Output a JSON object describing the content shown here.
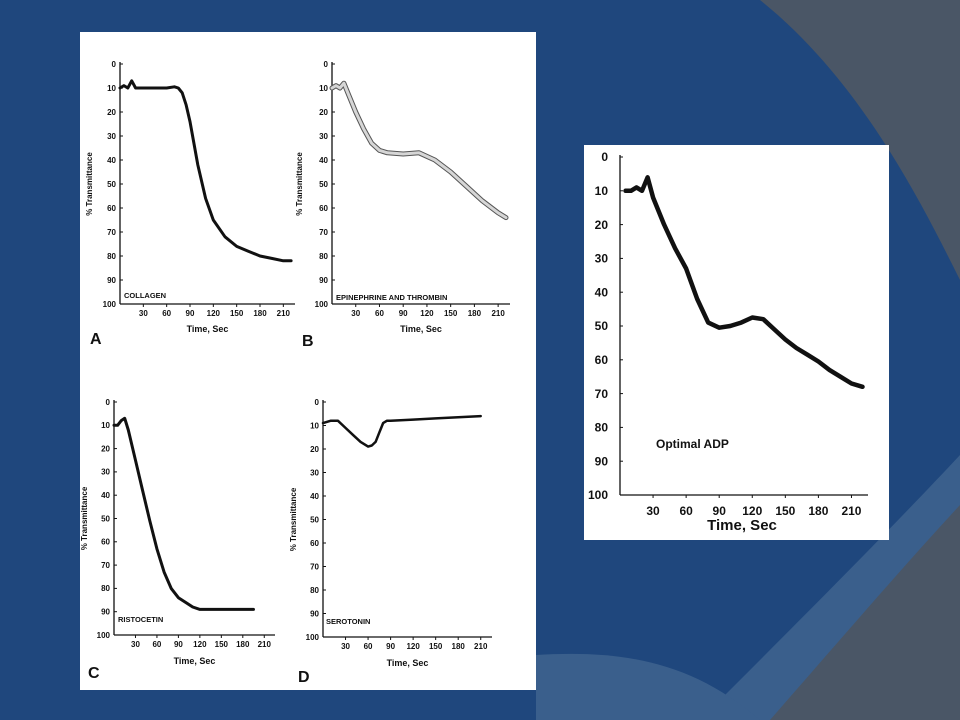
{
  "slide": {
    "colors": {
      "background": "#1f477d",
      "band_light": "#3a5f8c",
      "band_grey": "#4a5666",
      "panel": "#ffffff",
      "ink": "#111111"
    }
  },
  "chart_data": [
    {
      "id": "A",
      "type": "line",
      "panel_letter": "A",
      "annotation": "COLLAGEN",
      "xlabel": "Time, Sec",
      "ylabel": "% Transmittance",
      "xticks": [
        30,
        60,
        90,
        120,
        150,
        180,
        210
      ],
      "yticks": [
        0,
        10,
        20,
        30,
        40,
        50,
        60,
        70,
        80,
        90,
        100
      ],
      "xlim": [
        0,
        225
      ],
      "ylim": [
        0,
        100
      ],
      "y_inverted": true,
      "style": "dark",
      "series": [
        {
          "x": [
            0,
            5,
            10,
            15,
            20,
            40,
            60,
            70,
            75,
            80,
            85,
            90,
            95,
            100,
            110,
            120,
            135,
            150,
            165,
            180,
            195,
            210,
            220
          ],
          "y": [
            10,
            9,
            10,
            7,
            10,
            10,
            10,
            9.5,
            10,
            12,
            17,
            24,
            33,
            42,
            56,
            65,
            72,
            76,
            78,
            80,
            81,
            82,
            82
          ]
        }
      ]
    },
    {
      "id": "B",
      "type": "line",
      "panel_letter": "B",
      "annotation": "EPINEPHRINE AND THROMBIN",
      "xlabel": "Time, Sec",
      "ylabel": "% Transmittance",
      "xticks": [
        30,
        60,
        90,
        120,
        150,
        180,
        210
      ],
      "yticks": [
        0,
        10,
        20,
        30,
        40,
        50,
        60,
        70,
        80,
        90,
        100
      ],
      "xlim": [
        0,
        225
      ],
      "ylim": [
        0,
        100
      ],
      "y_inverted": true,
      "style": "light",
      "series": [
        {
          "x": [
            0,
            5,
            10,
            15,
            20,
            30,
            40,
            50,
            60,
            70,
            90,
            110,
            130,
            150,
            170,
            190,
            210,
            220
          ],
          "y": [
            10,
            9,
            10,
            8,
            12,
            20,
            27,
            33,
            36,
            37,
            37.5,
            37,
            40,
            45,
            51,
            57,
            62,
            64
          ]
        }
      ]
    },
    {
      "id": "C",
      "type": "line",
      "panel_letter": "C",
      "annotation": "RISTOCETIN",
      "xlabel": "Time, Sec",
      "ylabel": "% Transmittance",
      "xticks": [
        30,
        60,
        90,
        120,
        150,
        180,
        210
      ],
      "yticks": [
        0,
        10,
        20,
        30,
        40,
        50,
        60,
        70,
        80,
        90,
        100
      ],
      "xlim": [
        0,
        225
      ],
      "ylim": [
        0,
        100
      ],
      "y_inverted": true,
      "style": "dark",
      "series": [
        {
          "x": [
            0,
            5,
            10,
            15,
            20,
            30,
            40,
            50,
            60,
            70,
            80,
            90,
            100,
            110,
            120,
            140,
            160,
            180,
            195
          ],
          "y": [
            10,
            10,
            8,
            7,
            12,
            25,
            38,
            51,
            63,
            73,
            80,
            84,
            86,
            88,
            89,
            89,
            89,
            89,
            89
          ]
        }
      ]
    },
    {
      "id": "D",
      "type": "line",
      "panel_letter": "D",
      "annotation": "SEROTONIN",
      "xlabel": "Time, Sec",
      "ylabel": "% Transmittance",
      "xticks": [
        30,
        60,
        90,
        120,
        150,
        180,
        210
      ],
      "yticks": [
        0,
        10,
        20,
        30,
        40,
        50,
        60,
        70,
        80,
        90,
        100
      ],
      "xlim": [
        0,
        225
      ],
      "ylim": [
        0,
        100
      ],
      "y_inverted": true,
      "style": "dark",
      "series": [
        {
          "x": [
            0,
            10,
            20,
            30,
            40,
            50,
            60,
            65,
            70,
            75,
            80,
            85,
            90,
            120,
            150,
            180,
            210
          ],
          "y": [
            9,
            8,
            8,
            11,
            14,
            17,
            19,
            18.5,
            17,
            13,
            9,
            8,
            8,
            7.5,
            7,
            6.5,
            6
          ]
        }
      ]
    },
    {
      "id": "E",
      "type": "line",
      "annotation": "Optimal ADP",
      "xlabel": "Time, Sec",
      "xticks": [
        30,
        60,
        90,
        120,
        150,
        180,
        210
      ],
      "yticks": [
        0,
        10,
        20,
        30,
        40,
        50,
        60,
        70,
        80,
        90,
        100
      ],
      "xlim": [
        0,
        225
      ],
      "ylim": [
        0,
        100
      ],
      "y_inverted": true,
      "style": "dark",
      "series": [
        {
          "x": [
            5,
            10,
            15,
            20,
            25,
            30,
            40,
            50,
            60,
            70,
            80,
            90,
            100,
            110,
            120,
            130,
            140,
            150,
            160,
            170,
            180,
            190,
            200,
            210,
            220
          ],
          "y": [
            10,
            10,
            9,
            10,
            6,
            12,
            20,
            27,
            33,
            42,
            49,
            50.5,
            50,
            49,
            47.5,
            48,
            51,
            54,
            56.5,
            58.5,
            60.5,
            63,
            65,
            67,
            68
          ]
        }
      ]
    }
  ]
}
